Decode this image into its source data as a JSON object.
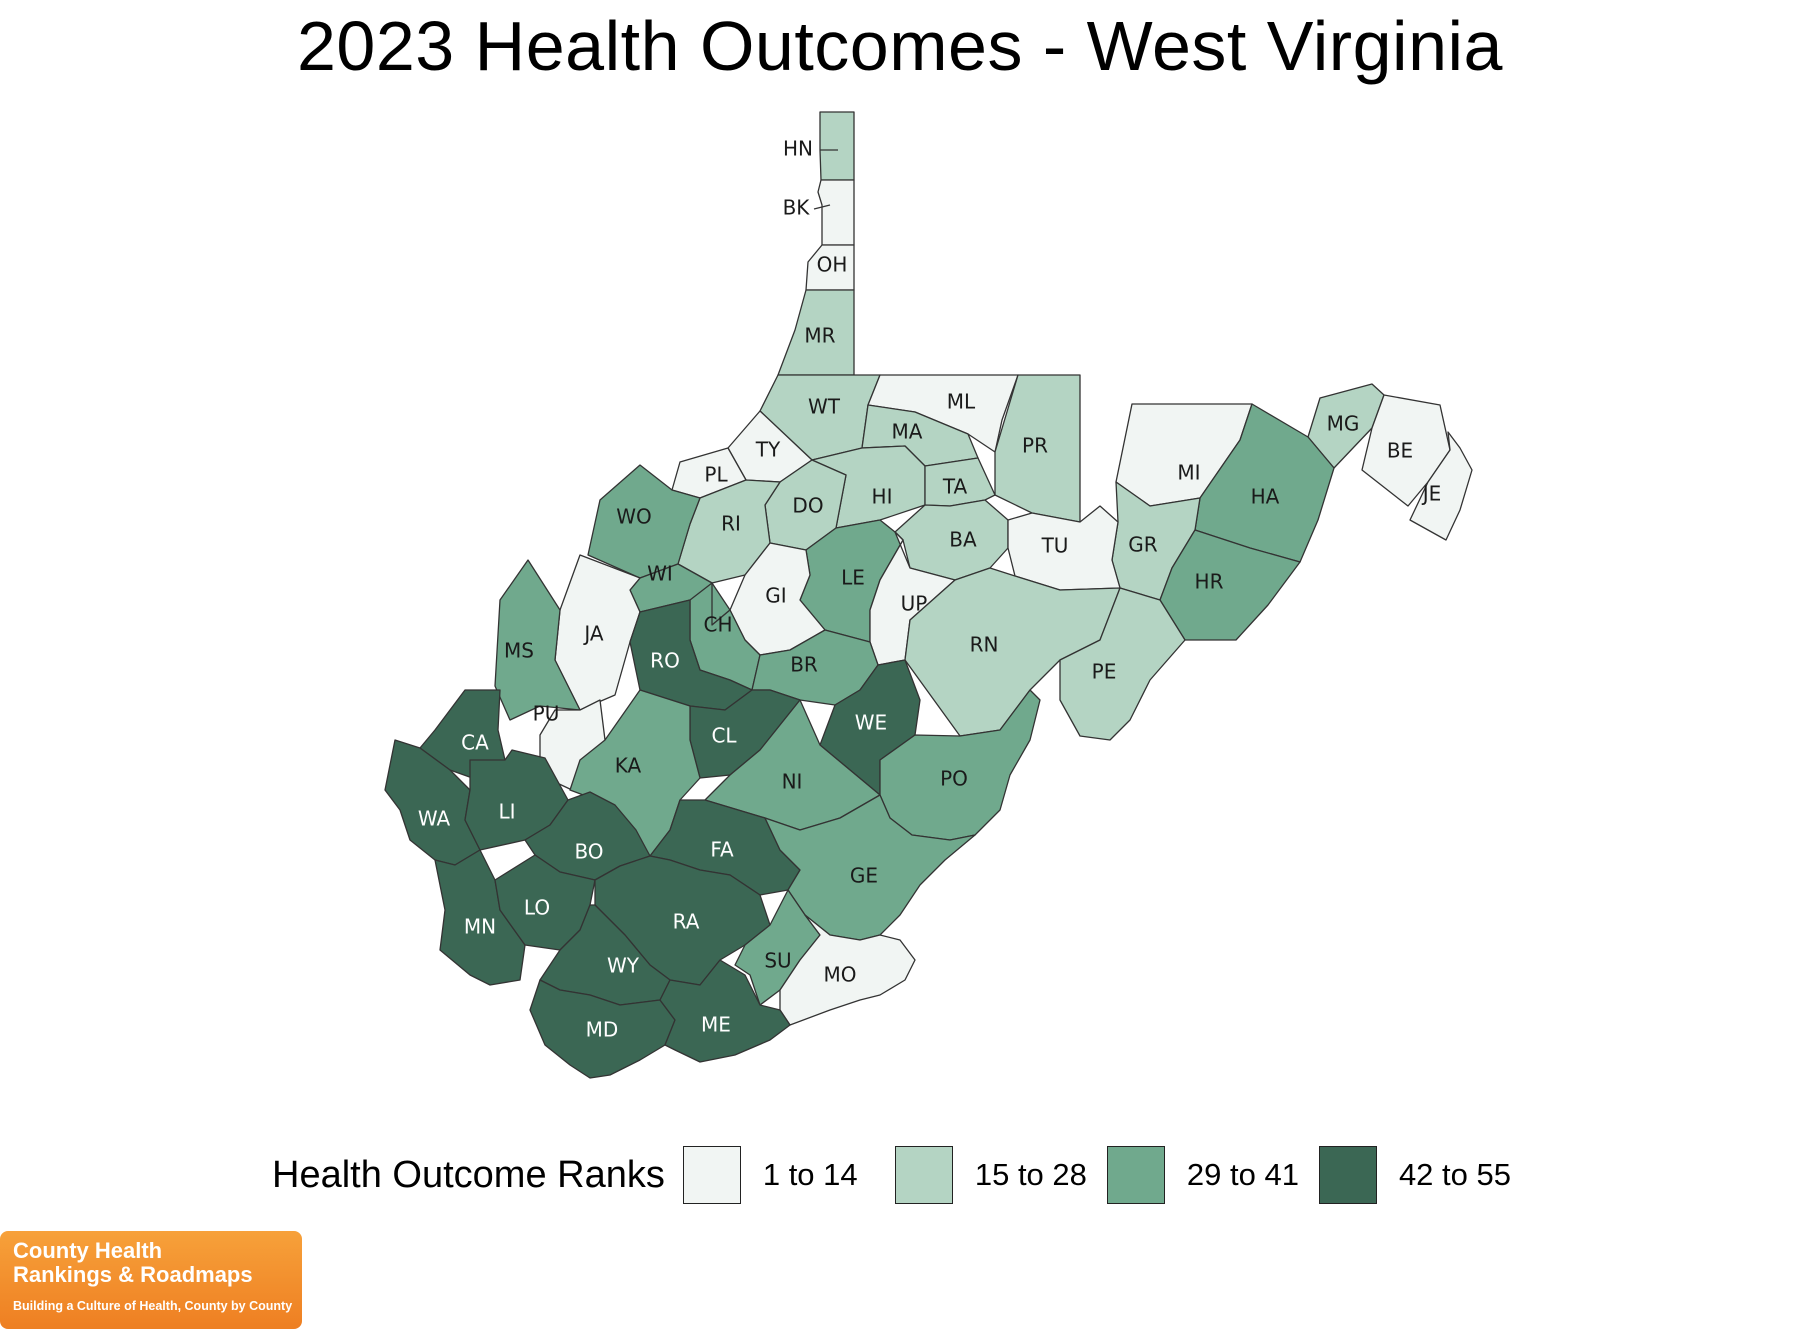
{
  "title": "2023 Health Outcomes - West Virginia",
  "legend": {
    "title": "Health Outcome Ranks",
    "items": [
      {
        "label": "1 to 14",
        "color": "#f1f5f3"
      },
      {
        "label": "15 to 28",
        "color": "#b4d4c3"
      },
      {
        "label": "29 to 41",
        "color": "#70a98d"
      },
      {
        "label": "42 to 55",
        "color": "#3b6754"
      }
    ]
  },
  "counties": [
    {
      "abbr": "HN",
      "tier": 1
    },
    {
      "abbr": "BK",
      "tier": 0
    },
    {
      "abbr": "OH",
      "tier": 0
    },
    {
      "abbr": "MR",
      "tier": 1
    },
    {
      "abbr": "WT",
      "tier": 1
    },
    {
      "abbr": "ML",
      "tier": 0
    },
    {
      "abbr": "PR",
      "tier": 1
    },
    {
      "abbr": "MA",
      "tier": 1
    },
    {
      "abbr": "TY",
      "tier": 0
    },
    {
      "abbr": "PL",
      "tier": 0
    },
    {
      "abbr": "HI",
      "tier": 1
    },
    {
      "abbr": "TA",
      "tier": 1
    },
    {
      "abbr": "DO",
      "tier": 1
    },
    {
      "abbr": "RI",
      "tier": 1
    },
    {
      "abbr": "WO",
      "tier": 2
    },
    {
      "abbr": "BA",
      "tier": 1
    },
    {
      "abbr": "MI",
      "tier": 0
    },
    {
      "abbr": "MG",
      "tier": 1
    },
    {
      "abbr": "BE",
      "tier": 0
    },
    {
      "abbr": "JE",
      "tier": 0
    },
    {
      "abbr": "HA",
      "tier": 2
    },
    {
      "abbr": "GR",
      "tier": 1
    },
    {
      "abbr": "TU",
      "tier": 0
    },
    {
      "abbr": "HR",
      "tier": 2
    },
    {
      "abbr": "WI",
      "tier": 2
    },
    {
      "abbr": "LE",
      "tier": 2
    },
    {
      "abbr": "GI",
      "tier": 0
    },
    {
      "abbr": "UP",
      "tier": 0
    },
    {
      "abbr": "JA",
      "tier": 0
    },
    {
      "abbr": "CH",
      "tier": 2
    },
    {
      "abbr": "RN",
      "tier": 1
    },
    {
      "abbr": "RO",
      "tier": 3
    },
    {
      "abbr": "MS",
      "tier": 2
    },
    {
      "abbr": "BR",
      "tier": 2
    },
    {
      "abbr": "PE",
      "tier": 1
    },
    {
      "abbr": "PU",
      "tier": 0
    },
    {
      "abbr": "WE",
      "tier": 3
    },
    {
      "abbr": "CL",
      "tier": 3
    },
    {
      "abbr": "CA",
      "tier": 3
    },
    {
      "abbr": "KA",
      "tier": 2
    },
    {
      "abbr": "NI",
      "tier": 2
    },
    {
      "abbr": "PO",
      "tier": 2
    },
    {
      "abbr": "WA",
      "tier": 3
    },
    {
      "abbr": "LI",
      "tier": 3
    },
    {
      "abbr": "BO",
      "tier": 3
    },
    {
      "abbr": "FA",
      "tier": 3
    },
    {
      "abbr": "GE",
      "tier": 2
    },
    {
      "abbr": "MN",
      "tier": 3
    },
    {
      "abbr": "LO",
      "tier": 3
    },
    {
      "abbr": "RA",
      "tier": 3
    },
    {
      "abbr": "SU",
      "tier": 2
    },
    {
      "abbr": "WY",
      "tier": 3
    },
    {
      "abbr": "MO",
      "tier": 0
    },
    {
      "abbr": "MD",
      "tier": 3
    },
    {
      "abbr": "ME",
      "tier": 3
    }
  ],
  "logo": {
    "line1": "County Health",
    "line2": "Rankings & Roadmaps",
    "tagline": "Building a Culture of Health, County by County"
  }
}
